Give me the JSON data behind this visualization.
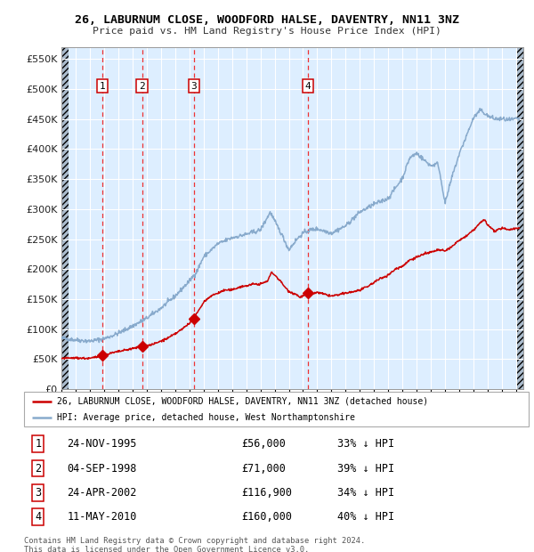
{
  "title": "26, LABURNUM CLOSE, WOODFORD HALSE, DAVENTRY, NN11 3NZ",
  "subtitle": "Price paid vs. HM Land Registry's House Price Index (HPI)",
  "ylim": [
    0,
    570000
  ],
  "yticks": [
    0,
    50000,
    100000,
    150000,
    200000,
    250000,
    300000,
    350000,
    400000,
    450000,
    500000,
    550000
  ],
  "ytick_labels": [
    "£0",
    "£50K",
    "£100K",
    "£150K",
    "£200K",
    "£250K",
    "£300K",
    "£350K",
    "£400K",
    "£450K",
    "£500K",
    "£550K"
  ],
  "xlim_start": 1993.0,
  "xlim_end": 2025.5,
  "background_color": "#ffffff",
  "plot_bg_color": "#ddeeff",
  "grid_color": "#ffffff",
  "sale_color": "#cc0000",
  "hpi_color": "#88aacc",
  "vline_color": "#ee3333",
  "transactions": [
    {
      "num": 1,
      "year": 1995.9,
      "price": 56000
    },
    {
      "num": 2,
      "year": 1998.67,
      "price": 71000
    },
    {
      "num": 3,
      "year": 2002.32,
      "price": 116900
    },
    {
      "num": 4,
      "year": 2010.36,
      "price": 160000
    }
  ],
  "legend_sale_label": "26, LABURNUM CLOSE, WOODFORD HALSE, DAVENTRY, NN11 3NZ (detached house)",
  "legend_hpi_label": "HPI: Average price, detached house, West Northamptonshire",
  "footer_line1": "Contains HM Land Registry data © Crown copyright and database right 2024.",
  "footer_line2": "This data is licensed under the Open Government Licence v3.0.",
  "table_rows": [
    {
      "num": 1,
      "date": "24-NOV-1995",
      "price": "£56,000",
      "hpi": "33% ↓ HPI"
    },
    {
      "num": 2,
      "date": "04-SEP-1998",
      "price": "£71,000",
      "hpi": "39% ↓ HPI"
    },
    {
      "num": 3,
      "date": "24-APR-2002",
      "price": "£116,900",
      "hpi": "34% ↓ HPI"
    },
    {
      "num": 4,
      "date": "11-MAY-2010",
      "price": "£160,000",
      "hpi": "40% ↓ HPI"
    }
  ]
}
